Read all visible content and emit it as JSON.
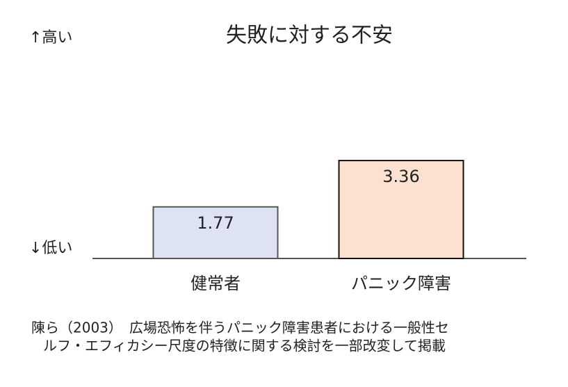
{
  "chart_data": {
    "type": "bar",
    "title": "失敗に対する不安",
    "high_label": "↑高い",
    "low_label": "↓低い",
    "categories": [
      "健常者",
      "パニック障害"
    ],
    "values": [
      1.77,
      3.36
    ],
    "colors": [
      "#dde3f3",
      "#fde1d0"
    ],
    "ylim": [
      0,
      3.6
    ],
    "note": [
      "陳ら（2003）　広場恐怖を伴うパニック障害患者における一般性セ",
      "ルフ・エフィカシー尺度の特徴に関する検討を一部改変して掲載"
    ]
  }
}
